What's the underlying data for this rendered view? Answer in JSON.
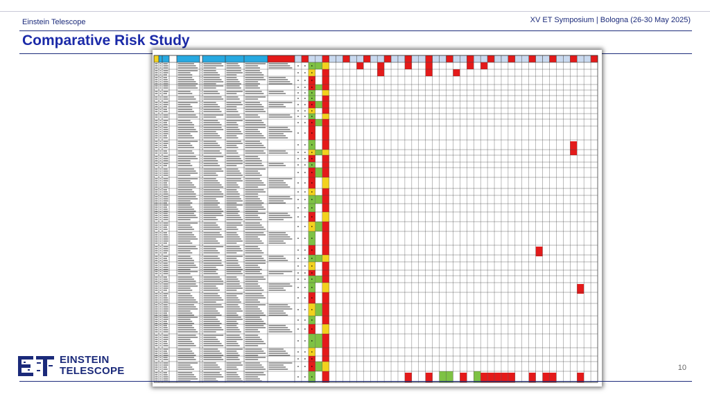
{
  "header": {
    "left": "Einstein Telescope",
    "right": "XV ET Symposium | Bologna (26-30 May 2025)"
  },
  "title": "Comparative Risk Study",
  "logo": {
    "line1": "EINSTEIN",
    "line2": "TELESCOPE"
  },
  "page_number": "10",
  "colors": {
    "brand": "#1b2a7a",
    "title": "#1b2aa8",
    "risk_high": "#e41a1a",
    "risk_medium": "#f2d21e",
    "risk_low": "#7ec244",
    "header_cyan": "#27a9e1",
    "header_red": "#e41a1a"
  }
}
